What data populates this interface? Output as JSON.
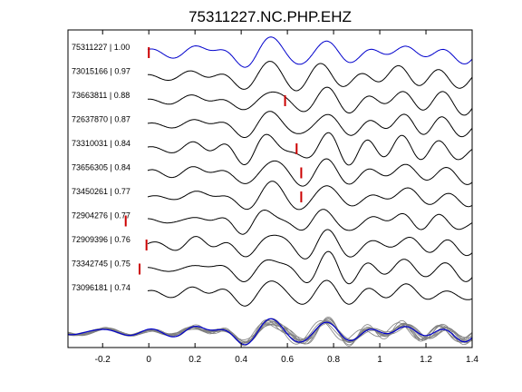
{
  "chart_data": {
    "type": "line",
    "title": "75311227.NC.PHP.EHZ",
    "xlim": [
      -0.35,
      1.4
    ],
    "xticks": [
      -0.2,
      0,
      0.2,
      0.4,
      0.6,
      0.8,
      1,
      1.2,
      1.4
    ],
    "xtick_labels": [
      "-0.2",
      "0",
      "0.2",
      "0.4",
      "0.6",
      "0.8",
      "1",
      "1.2",
      "1.4"
    ],
    "grid": false,
    "master_color": "#0000cc",
    "trace_color": "#000000",
    "stack_color": "#808080",
    "pick_color": "#cc0000",
    "traces": [
      {
        "label": "75311227 | 1.00",
        "pick": 0.0,
        "master": true
      },
      {
        "label": "73015166 | 0.97",
        "pick": null
      },
      {
        "label": "73663811 | 0.88",
        "pick": 0.59
      },
      {
        "label": "72637870 | 0.87",
        "pick": null
      },
      {
        "label": "73310031 | 0.84",
        "pick": 0.64
      },
      {
        "label": "73656305 | 0.84",
        "pick": 0.66
      },
      {
        "label": "73450261 | 0.77",
        "pick": 0.66
      },
      {
        "label": "72904276 | 0.77",
        "pick": -0.1
      },
      {
        "label": "72909396 | 0.76",
        "pick": -0.01
      },
      {
        "label": "73342745 | 0.75",
        "pick": -0.04
      },
      {
        "label": "73096181 | 0.74",
        "pick": null
      }
    ]
  }
}
